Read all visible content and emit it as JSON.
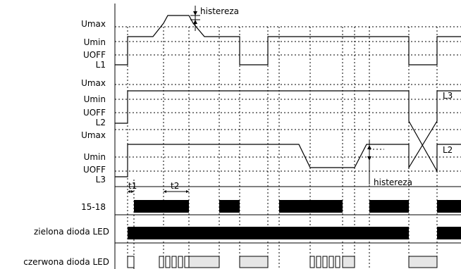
{
  "labels": {
    "group1": {
      "umax": "Umax",
      "umin": "Umin",
      "uoff": "UOFF",
      "line": "L1"
    },
    "group2": {
      "umax": "Umax",
      "umin": "Umin",
      "uoff": "UOFF",
      "line": "L2"
    },
    "group3": {
      "umax": "Umax",
      "umin": "Umin",
      "uoff": "UOFF",
      "line": "L3"
    },
    "relay": "15-18",
    "green_led": "zielona dioda LED",
    "red_led": "czerwona dioda LED"
  },
  "annotations": {
    "histereza_top": "histereza",
    "histereza_bottom": "histereza",
    "t1": "t1",
    "t2": "t2",
    "curve_l3": "L3",
    "curve_l2": "L2"
  }
}
